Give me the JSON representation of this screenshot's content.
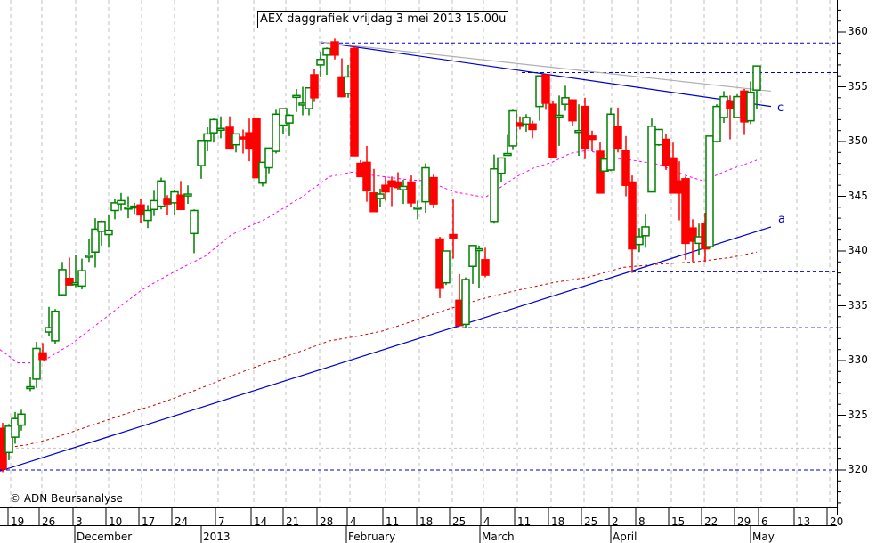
{
  "title": "AEX daggrafiek vrijdag 3 mei 2013 15.00u",
  "copyright": "© ADN Beursanalyse",
  "colors": {
    "up": "#008000",
    "down": "#ff0000",
    "trendline": "#0000cc",
    "ma_short": "#ff00ff",
    "ma_long": "#cc0000",
    "grid": "#c0c0c0",
    "grey_line": "#b0b0b0"
  },
  "line_labels": {
    "c": "c",
    "a": "a"
  },
  "chart_data": {
    "type": "candlestick",
    "title": "AEX daggrafiek vrijdag 3 mei 2013 15.00u",
    "xlabel": "",
    "ylabel": "",
    "ylim": [
      315.5,
      362.5
    ],
    "yticks": [
      320,
      325,
      330,
      335,
      340,
      345,
      350,
      355,
      360
    ],
    "x_week_ticks": [
      "19",
      "26",
      "3",
      "10",
      "17",
      "24",
      "7",
      "14",
      "21",
      "28",
      "4",
      "11",
      "18",
      "25",
      "4",
      "11",
      "18",
      "25",
      "2",
      "8",
      "15",
      "22",
      "29",
      "6",
      "13",
      "20"
    ],
    "x_months": [
      "December",
      "2013",
      "February",
      "March",
      "April",
      "May"
    ],
    "grid": true,
    "candles": [
      {
        "x": 3,
        "o": 323.8,
        "h": 324.3,
        "l": 319.8,
        "c": 320.1
      },
      {
        "x": 10,
        "o": 321.6,
        "h": 324.2,
        "l": 320.9,
        "c": 324.0
      },
      {
        "x": 17,
        "o": 323.0,
        "h": 325.3,
        "l": 322.4,
        "c": 324.7
      },
      {
        "x": 24,
        "o": 324.1,
        "h": 325.5,
        "l": 323.6,
        "c": 325.1
      },
      {
        "x": 34,
        "o": 327.6,
        "h": 328.5,
        "l": 327.2,
        "c": 327.6
      },
      {
        "x": 41,
        "o": 328.3,
        "h": 331.7,
        "l": 327.5,
        "c": 331.1
      },
      {
        "x": 48,
        "o": 330.7,
        "h": 331.6,
        "l": 330.1,
        "c": 330.1
      },
      {
        "x": 55,
        "o": 332.6,
        "h": 334.9,
        "l": 332.2,
        "c": 333.0
      },
      {
        "x": 62,
        "o": 331.8,
        "h": 334.7,
        "l": 331.5,
        "c": 334.5
      },
      {
        "x": 70,
        "o": 336.0,
        "h": 339.0,
        "l": 335.9,
        "c": 338.3
      },
      {
        "x": 78,
        "o": 337.5,
        "h": 339.4,
        "l": 336.9,
        "c": 336.9
      },
      {
        "x": 85,
        "o": 337.1,
        "h": 339.6,
        "l": 336.7,
        "c": 337.1
      },
      {
        "x": 92,
        "o": 336.8,
        "h": 339.3,
        "l": 336.5,
        "c": 338.2
      },
      {
        "x": 100,
        "o": 339.6,
        "h": 341.1,
        "l": 339.0,
        "c": 339.6
      },
      {
        "x": 107,
        "o": 339.9,
        "h": 343.0,
        "l": 338.5,
        "c": 342.0
      },
      {
        "x": 114,
        "o": 341.8,
        "h": 342.8,
        "l": 340.5,
        "c": 342.7
      },
      {
        "x": 122,
        "o": 341.5,
        "h": 343.3,
        "l": 340.3,
        "c": 341.9
      },
      {
        "x": 129,
        "o": 343.7,
        "h": 344.8,
        "l": 342.9,
        "c": 344.4
      },
      {
        "x": 136,
        "o": 344.3,
        "h": 345.3,
        "l": 343.7,
        "c": 344.6
      },
      {
        "x": 144,
        "o": 344.0,
        "h": 345.0,
        "l": 343.0,
        "c": 344.0
      },
      {
        "x": 151,
        "o": 344.1,
        "h": 344.4,
        "l": 343.4,
        "c": 344.1
      },
      {
        "x": 158,
        "o": 344.2,
        "h": 344.8,
        "l": 342.6,
        "c": 343.3
      },
      {
        "x": 166,
        "o": 342.8,
        "h": 344.2,
        "l": 342.1,
        "c": 343.7
      },
      {
        "x": 173,
        "o": 343.8,
        "h": 345.5,
        "l": 343.2,
        "c": 344.6
      },
      {
        "x": 181,
        "o": 344.1,
        "h": 346.7,
        "l": 343.8,
        "c": 346.4
      },
      {
        "x": 188,
        "o": 344.8,
        "h": 345.1,
        "l": 343.3,
        "c": 344.3
      },
      {
        "x": 196,
        "o": 344.4,
        "h": 345.6,
        "l": 343.3,
        "c": 345.4
      },
      {
        "x": 203,
        "o": 345.1,
        "h": 346.4,
        "l": 343.8,
        "c": 343.8
      },
      {
        "x": 211,
        "o": 345.2,
        "h": 346.0,
        "l": 344.3,
        "c": 345.2
      },
      {
        "x": 218,
        "o": 341.6,
        "h": 343.8,
        "l": 339.8,
        "c": 343.7
      },
      {
        "x": 226,
        "o": 347.8,
        "h": 350.1,
        "l": 346.6,
        "c": 350.1
      },
      {
        "x": 233,
        "o": 350.1,
        "h": 351.3,
        "l": 349.1,
        "c": 350.7
      },
      {
        "x": 240,
        "o": 350.8,
        "h": 352.1,
        "l": 349.9,
        "c": 352.0
      },
      {
        "x": 248,
        "o": 351.2,
        "h": 352.3,
        "l": 350.3,
        "c": 351.2
      },
      {
        "x": 258,
        "o": 351.3,
        "h": 352.3,
        "l": 349.9,
        "c": 349.4
      },
      {
        "x": 265,
        "o": 349.7,
        "h": 350.7,
        "l": 349.0,
        "c": 350.7
      },
      {
        "x": 273,
        "o": 350.4,
        "h": 351.1,
        "l": 348.9,
        "c": 350.3
      },
      {
        "x": 280,
        "o": 350.8,
        "h": 352.1,
        "l": 348.2,
        "c": 349.4
      },
      {
        "x": 288,
        "o": 352.1,
        "h": 352.1,
        "l": 346.7,
        "c": 346.7
      },
      {
        "x": 295,
        "o": 346.2,
        "h": 348.0,
        "l": 345.9,
        "c": 348.1
      },
      {
        "x": 302,
        "o": 347.6,
        "h": 348.4,
        "l": 347.1,
        "c": 349.4
      },
      {
        "x": 310,
        "o": 349.1,
        "h": 352.9,
        "l": 348.9,
        "c": 352.5
      },
      {
        "x": 318,
        "o": 351.5,
        "h": 353.0,
        "l": 350.7,
        "c": 353.0
      },
      {
        "x": 325,
        "o": 351.7,
        "h": 352.5,
        "l": 350.5,
        "c": 352.4
      },
      {
        "x": 333,
        "o": 354.1,
        "h": 354.8,
        "l": 352.7,
        "c": 354.2
      },
      {
        "x": 340,
        "o": 353.5,
        "h": 355.0,
        "l": 352.4,
        "c": 353.5
      },
      {
        "x": 347,
        "o": 353.0,
        "h": 354.9,
        "l": 352.4,
        "c": 354.9
      },
      {
        "x": 353,
        "o": 356.1,
        "h": 356.6,
        "l": 353.6,
        "c": 354.0
      },
      {
        "x": 360,
        "o": 357.0,
        "h": 358.2,
        "l": 355.9,
        "c": 357.5
      },
      {
        "x": 367,
        "o": 357.9,
        "h": 358.6,
        "l": 356.1,
        "c": 358.5
      },
      {
        "x": 376,
        "o": 359.1,
        "h": 359.4,
        "l": 357.5,
        "c": 357.9
      },
      {
        "x": 384,
        "o": 355.9,
        "h": 357.6,
        "l": 354.1,
        "c": 354.1
      },
      {
        "x": 391,
        "o": 354.4,
        "h": 357.0,
        "l": 354.0,
        "c": 355.9
      },
      {
        "x": 398,
        "o": 358.5,
        "h": 358.7,
        "l": 348.7,
        "c": 348.7
      },
      {
        "x": 405,
        "o": 348.0,
        "h": 348.3,
        "l": 346.8,
        "c": 346.8
      },
      {
        "x": 412,
        "o": 348.1,
        "h": 349.6,
        "l": 344.5,
        "c": 345.5
      },
      {
        "x": 420,
        "o": 345.3,
        "h": 347.5,
        "l": 343.6,
        "c": 343.6
      },
      {
        "x": 427,
        "o": 344.8,
        "h": 345.7,
        "l": 344.0,
        "c": 345.2
      },
      {
        "x": 433,
        "o": 346.0,
        "h": 346.8,
        "l": 344.6,
        "c": 345.4
      },
      {
        "x": 440,
        "o": 346.4,
        "h": 346.8,
        "l": 344.1,
        "c": 345.9
      },
      {
        "x": 447,
        "o": 346.3,
        "h": 347.2,
        "l": 345.6,
        "c": 345.8
      },
      {
        "x": 453,
        "o": 345.6,
        "h": 346.5,
        "l": 344.3,
        "c": 345.9
      },
      {
        "x": 462,
        "o": 346.3,
        "h": 346.9,
        "l": 344.0,
        "c": 344.4
      },
      {
        "x": 469,
        "o": 344.0,
        "h": 344.6,
        "l": 342.9,
        "c": 344.0
      },
      {
        "x": 478,
        "o": 344.5,
        "h": 348.0,
        "l": 343.5,
        "c": 347.6
      },
      {
        "x": 487,
        "o": 346.7,
        "h": 347.0,
        "l": 343.9,
        "c": 344.3
      },
      {
        "x": 494,
        "o": 341.1,
        "h": 341.3,
        "l": 335.7,
        "c": 336.6
      },
      {
        "x": 501,
        "o": 337.1,
        "h": 339.9,
        "l": 336.9,
        "c": 340.0
      },
      {
        "x": 509,
        "o": 341.5,
        "h": 344.7,
        "l": 339.3,
        "c": 341.2
      },
      {
        "x": 516,
        "o": 335.5,
        "h": 337.9,
        "l": 333.1,
        "c": 333.2
      },
      {
        "x": 523,
        "o": 333.3,
        "h": 337.6,
        "l": 333.0,
        "c": 337.4
      },
      {
        "x": 531,
        "o": 338.6,
        "h": 340.5,
        "l": 337.0,
        "c": 340.5
      },
      {
        "x": 538,
        "o": 340.2,
        "h": 340.5,
        "l": 336.6,
        "c": 340.2
      },
      {
        "x": 545,
        "o": 339.2,
        "h": 340.3,
        "l": 337.6,
        "c": 337.8
      },
      {
        "x": 555,
        "o": 342.7,
        "h": 348.8,
        "l": 342.5,
        "c": 347.5
      },
      {
        "x": 563,
        "o": 347.1,
        "h": 348.4,
        "l": 346.3,
        "c": 348.5
      },
      {
        "x": 570,
        "o": 348.9,
        "h": 350.6,
        "l": 348.7,
        "c": 348.9
      },
      {
        "x": 576,
        "o": 349.6,
        "h": 352.9,
        "l": 349.3,
        "c": 352.8
      },
      {
        "x": 584,
        "o": 351.7,
        "h": 352.3,
        "l": 351.1,
        "c": 351.4
      },
      {
        "x": 591,
        "o": 351.6,
        "h": 352.5,
        "l": 350.9,
        "c": 352.2
      },
      {
        "x": 598,
        "o": 351.6,
        "h": 351.9,
        "l": 350.3,
        "c": 351.1
      },
      {
        "x": 606,
        "o": 353.2,
        "h": 356.0,
        "l": 351.9,
        "c": 356.0
      },
      {
        "x": 613,
        "o": 356.1,
        "h": 356.1,
        "l": 352.9,
        "c": 353.5
      },
      {
        "x": 621,
        "o": 353.4,
        "h": 353.7,
        "l": 348.6,
        "c": 348.6
      },
      {
        "x": 628,
        "o": 352.4,
        "h": 354.2,
        "l": 349.6,
        "c": 352.4
      },
      {
        "x": 635,
        "o": 353.4,
        "h": 355.1,
        "l": 352.8,
        "c": 354.0
      },
      {
        "x": 643,
        "o": 353.8,
        "h": 353.8,
        "l": 351.4,
        "c": 351.9
      },
      {
        "x": 650,
        "o": 351.0,
        "h": 353.4,
        "l": 348.7,
        "c": 351.0
      },
      {
        "x": 657,
        "o": 353.2,
        "h": 354.0,
        "l": 348.4,
        "c": 349.4
      },
      {
        "x": 665,
        "o": 350.5,
        "h": 351.0,
        "l": 349.1,
        "c": 350.2
      },
      {
        "x": 674,
        "o": 349.1,
        "h": 350.0,
        "l": 345.3,
        "c": 345.3
      },
      {
        "x": 679,
        "o": 347.3,
        "h": 348.4,
        "l": 347.3,
        "c": 348.4
      },
      {
        "x": 686,
        "o": 347.4,
        "h": 353.1,
        "l": 347.3,
        "c": 352.5
      },
      {
        "x": 694,
        "o": 351.4,
        "h": 353.1,
        "l": 349.0,
        "c": 349.4
      },
      {
        "x": 703,
        "o": 349.2,
        "h": 350.5,
        "l": 345.0,
        "c": 346.0
      },
      {
        "x": 710,
        "o": 346.3,
        "h": 346.9,
        "l": 338.0,
        "c": 340.2
      },
      {
        "x": 718,
        "o": 340.6,
        "h": 342.1,
        "l": 339.9,
        "c": 341.3
      },
      {
        "x": 725,
        "o": 341.4,
        "h": 343.4,
        "l": 340.3,
        "c": 342.2
      },
      {
        "x": 732,
        "o": 345.4,
        "h": 352.1,
        "l": 345.4,
        "c": 351.4
      },
      {
        "x": 740,
        "o": 349.7,
        "h": 350.8,
        "l": 349.6,
        "c": 351.1
      },
      {
        "x": 748,
        "o": 350.2,
        "h": 350.7,
        "l": 347.4,
        "c": 347.8
      },
      {
        "x": 756,
        "o": 348.5,
        "h": 349.9,
        "l": 345.3,
        "c": 345.3
      },
      {
        "x": 763,
        "o": 346.4,
        "h": 348.2,
        "l": 342.8,
        "c": 345.3
      },
      {
        "x": 770,
        "o": 346.6,
        "h": 346.8,
        "l": 339.2,
        "c": 340.7
      },
      {
        "x": 778,
        "o": 342.1,
        "h": 342.9,
        "l": 339.0,
        "c": 340.9
      },
      {
        "x": 785,
        "o": 340.7,
        "h": 342.5,
        "l": 339.6,
        "c": 341.3
      },
      {
        "x": 792,
        "o": 342.5,
        "h": 343.5,
        "l": 339.0,
        "c": 340.2
      },
      {
        "x": 797,
        "o": 340.4,
        "h": 350.5,
        "l": 340.2,
        "c": 350.5
      },
      {
        "x": 805,
        "o": 350.0,
        "h": 353.4,
        "l": 349.9,
        "c": 353.2
      },
      {
        "x": 813,
        "o": 352.2,
        "h": 354.6,
        "l": 351.7,
        "c": 354.1
      },
      {
        "x": 820,
        "o": 353.7,
        "h": 354.2,
        "l": 350.2,
        "c": 353.0
      },
      {
        "x": 828,
        "o": 352.2,
        "h": 354.3,
        "l": 352.2,
        "c": 354.1
      },
      {
        "x": 836,
        "o": 354.6,
        "h": 354.8,
        "l": 350.6,
        "c": 351.8
      },
      {
        "x": 843,
        "o": 351.9,
        "h": 355.5,
        "l": 351.6,
        "c": 354.5
      },
      {
        "x": 850,
        "o": 354.7,
        "h": 355.2,
        "l": 353.0,
        "c": 356.9
      }
    ],
    "horizontal_levels": [
      359.0,
      356.3,
      338.1,
      333.0,
      320.0
    ],
    "trendlines": [
      {
        "name": "c",
        "from": [
          360,
          359.1
        ],
        "to": [
          866,
          353.2
        ]
      },
      {
        "name": "a",
        "from": [
          0,
          319.9
        ],
        "to": [
          866,
          342.2
        ]
      },
      {
        "name": "grey",
        "from": [
          358,
          359.1
        ],
        "to": [
          866,
          354.6
        ]
      }
    ]
  }
}
